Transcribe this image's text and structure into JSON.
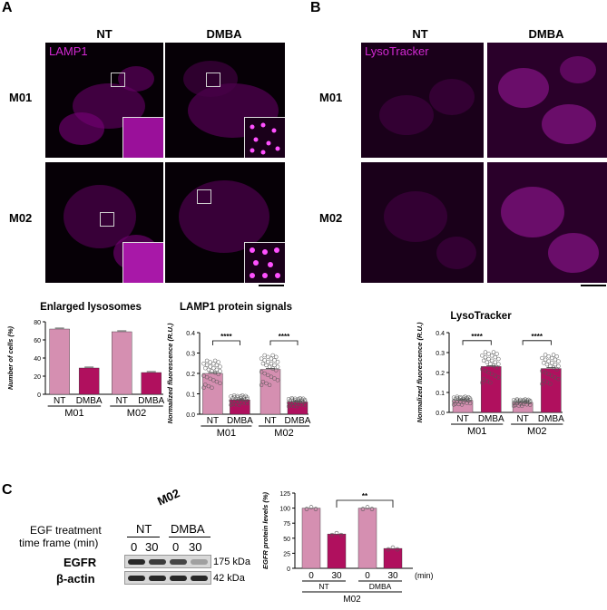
{
  "panels": {
    "a": "A",
    "b": "B",
    "c": "C"
  },
  "imaging_a": {
    "cols": [
      "NT",
      "DMBA"
    ],
    "rows": [
      "M01",
      "M02"
    ],
    "stain": "LAMP1"
  },
  "imaging_b": {
    "cols": [
      "NT",
      "DMBA"
    ],
    "rows": [
      "M01",
      "M02"
    ],
    "stain": "LysoTracker"
  },
  "colors": {
    "nt_bar": "#d58fb1",
    "dmba_bar": "#b0105e",
    "stain": "#d228d2",
    "bg": "#060006"
  },
  "chart_data": [
    {
      "type": "bar",
      "title": "Enlarged lysosomes",
      "ylabel": "Number of cells (%)",
      "ylim": [
        0,
        80
      ],
      "yticks": [
        "0",
        "20",
        "40",
        "60",
        "80"
      ],
      "categories": [
        "NT",
        "DMBA",
        "NT",
        "DMBA"
      ],
      "groups": [
        "M01",
        "M02"
      ],
      "values": [
        72,
        29,
        69,
        24
      ]
    },
    {
      "type": "bar",
      "title": "LAMP1 protein signals",
      "ylabel": "Normalized fluorescence (R.U.)",
      "ylim": [
        0,
        0.4
      ],
      "yticks": [
        "0.0",
        "0.1",
        "0.2",
        "0.3",
        "0.4"
      ],
      "categories": [
        "NT",
        "DMBA",
        "NT",
        "DMBA"
      ],
      "groups": [
        "M01",
        "M02"
      ],
      "values": [
        0.2,
        0.07,
        0.22,
        0.06
      ],
      "significance": [
        "****",
        "****"
      ]
    },
    {
      "type": "bar",
      "title": "LysoTracker",
      "ylabel": "Normalized fluorescence (R.U.)",
      "ylim": [
        0,
        0.4
      ],
      "yticks": [
        "0.0",
        "0.1",
        "0.2",
        "0.3",
        "0.4"
      ],
      "categories": [
        "NT",
        "DMBA",
        "NT",
        "DMBA"
      ],
      "groups": [
        "M01",
        "M02"
      ],
      "values": [
        0.06,
        0.23,
        0.05,
        0.22
      ],
      "significance": [
        "****",
        "****"
      ]
    },
    {
      "type": "bar",
      "title": "",
      "ylabel": "EGFR protein levels (%)",
      "ylim": [
        0,
        125
      ],
      "yticks": [
        "0",
        "25",
        "50",
        "75",
        "100",
        "125"
      ],
      "categories": [
        "0",
        "30",
        "0",
        "30"
      ],
      "treatments": [
        "NT",
        "DMBA"
      ],
      "group": "M02",
      "xunit": "(min)",
      "values": [
        100,
        57,
        100,
        33
      ],
      "significance": [
        "**"
      ]
    }
  ],
  "western": {
    "cell_line": "M02",
    "treatment_label_1": "EGF treatment",
    "treatment_label_2": "time frame (min)",
    "groups": [
      "NT",
      "DMBA"
    ],
    "times": [
      "0",
      "30",
      "0",
      "30"
    ],
    "bands": [
      {
        "name": "EGFR",
        "size": "175 kDa",
        "intensities": [
          0.9,
          0.8,
          0.75,
          0.3
        ]
      },
      {
        "name": "β-actin",
        "size": "42 kDa",
        "intensities": [
          0.9,
          0.9,
          0.9,
          0.9
        ]
      }
    ]
  }
}
